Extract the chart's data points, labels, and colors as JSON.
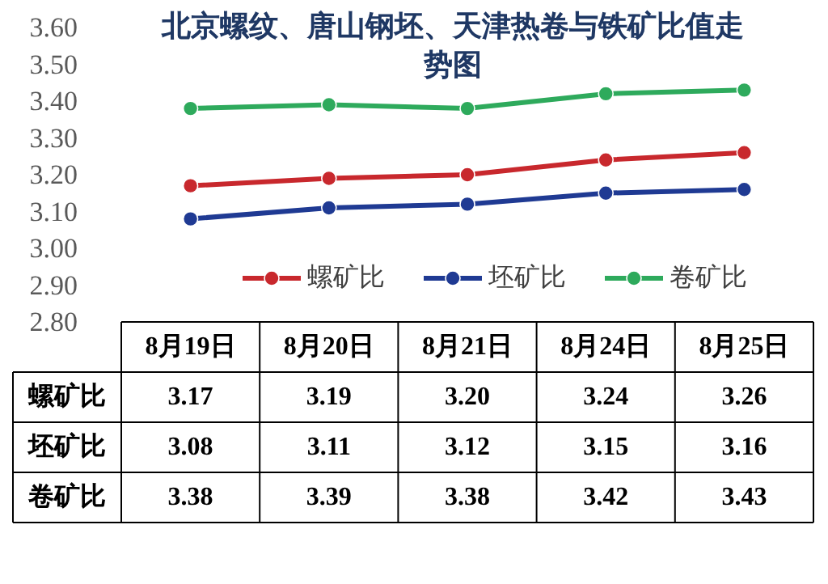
{
  "chart_data": {
    "type": "line",
    "title": "北京螺纹、唐山钢坯、天津热卷与铁矿比值走势图",
    "categories": [
      "8月19日",
      "8月20日",
      "8月21日",
      "8月24日",
      "8月25日"
    ],
    "series": [
      {
        "name": "螺矿比",
        "color": "#c8282d",
        "values": [
          3.17,
          3.19,
          3.2,
          3.24,
          3.26
        ],
        "value_labels": [
          "3.17",
          "3.19",
          "3.20",
          "3.24",
          "3.26"
        ]
      },
      {
        "name": "坯矿比",
        "color": "#1f3a93",
        "values": [
          3.08,
          3.11,
          3.12,
          3.15,
          3.16
        ],
        "value_labels": [
          "3.08",
          "3.11",
          "3.12",
          "3.15",
          "3.16"
        ]
      },
      {
        "name": "卷矿比",
        "color": "#2eaa5c",
        "values": [
          3.38,
          3.39,
          3.38,
          3.42,
          3.43
        ],
        "value_labels": [
          "3.38",
          "3.39",
          "3.38",
          "3.42",
          "3.43"
        ]
      }
    ],
    "ylim": [
      2.8,
      3.6
    ],
    "yticks": [
      {
        "value": 2.8,
        "label": "2.80"
      },
      {
        "value": 2.9,
        "label": "2.90"
      },
      {
        "value": 3.0,
        "label": "3.00"
      },
      {
        "value": 3.1,
        "label": "3.10"
      },
      {
        "value": 3.2,
        "label": "3.20"
      },
      {
        "value": 3.3,
        "label": "3.30"
      },
      {
        "value": 3.4,
        "label": "3.40"
      },
      {
        "value": 3.5,
        "label": "3.50"
      },
      {
        "value": 3.6,
        "label": "3.60"
      }
    ],
    "marker": "circle",
    "legend": "bottom"
  }
}
